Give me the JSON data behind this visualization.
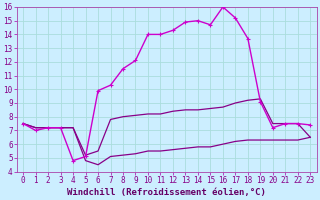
{
  "xlabel": "Windchill (Refroidissement éolien,°C)",
  "xlim": [
    -0.5,
    23.5
  ],
  "ylim": [
    4,
    16
  ],
  "xticks": [
    0,
    1,
    2,
    3,
    4,
    5,
    6,
    7,
    8,
    9,
    10,
    11,
    12,
    13,
    14,
    15,
    16,
    17,
    18,
    19,
    20,
    21,
    22,
    23
  ],
  "yticks": [
    4,
    5,
    6,
    7,
    8,
    9,
    10,
    11,
    12,
    13,
    14,
    15,
    16
  ],
  "bg_color": "#cceeff",
  "line_color1": "#cc00cc",
  "line_color2": "#880088",
  "grid_color": "#aadddd",
  "series1_x": [
    0,
    1,
    2,
    3,
    4,
    5,
    6,
    7,
    8,
    9,
    10,
    11,
    12,
    13,
    14,
    15,
    16,
    17,
    18,
    19,
    20,
    21,
    22,
    23
  ],
  "series1_y": [
    7.5,
    7.0,
    7.2,
    7.2,
    4.8,
    5.1,
    9.9,
    10.3,
    11.5,
    12.1,
    14.0,
    14.0,
    14.3,
    14.9,
    15.0,
    14.7,
    16.0,
    15.2,
    13.7,
    9.1,
    7.2,
    7.5,
    7.5,
    7.4
  ],
  "series2_x": [
    0,
    1,
    2,
    3,
    4,
    5,
    6,
    7,
    8,
    9,
    10,
    11,
    12,
    13,
    14,
    15,
    16,
    17,
    18,
    19,
    20,
    21,
    22,
    23
  ],
  "series2_y": [
    7.5,
    7.2,
    7.2,
    7.2,
    7.2,
    5.2,
    5.5,
    7.8,
    8.0,
    8.1,
    8.2,
    8.2,
    8.4,
    8.5,
    8.5,
    8.6,
    8.7,
    9.0,
    9.2,
    9.3,
    7.5,
    7.5,
    7.5,
    6.5
  ],
  "series3_x": [
    0,
    1,
    2,
    3,
    4,
    5,
    6,
    7,
    8,
    9,
    10,
    11,
    12,
    13,
    14,
    15,
    16,
    17,
    18,
    19,
    20,
    21,
    22,
    23
  ],
  "series3_y": [
    7.5,
    7.2,
    7.2,
    7.2,
    7.2,
    4.8,
    4.5,
    5.1,
    5.2,
    5.3,
    5.5,
    5.5,
    5.6,
    5.7,
    5.8,
    5.8,
    6.0,
    6.2,
    6.3,
    6.3,
    6.3,
    6.3,
    6.3,
    6.5
  ],
  "tick_fontsize": 5.5,
  "xlabel_fontsize": 6.5
}
